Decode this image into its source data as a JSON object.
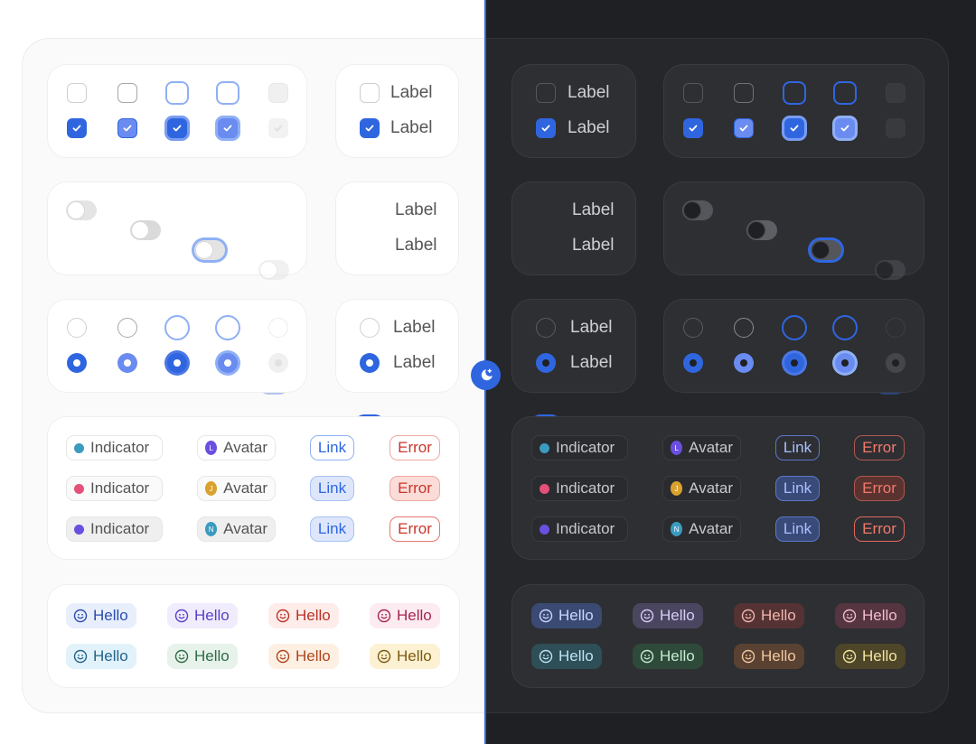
{
  "colors": {
    "accent": "#2f66e0",
    "accent_hover": "#6a8cf0",
    "focus_ring": "#8fb0f5",
    "dark_bg": "#1f2023"
  },
  "theme_toggle": {
    "icon": "moon-icon"
  },
  "checkbox_label_card": {
    "items": [
      {
        "label": "Label",
        "checked": false
      },
      {
        "label": "Label",
        "checked": true
      }
    ]
  },
  "toggle_label_card": {
    "items": [
      {
        "label": "Label",
        "on": false
      },
      {
        "label": "Label",
        "on": true
      }
    ]
  },
  "radio_label_card": {
    "items": [
      {
        "label": "Label",
        "selected": false
      },
      {
        "label": "Label",
        "selected": true
      }
    ]
  },
  "badges": {
    "indicators": [
      {
        "label": "Indicator",
        "dot": "#3a9bbf"
      },
      {
        "label": "Indicator",
        "dot": "#e4507a"
      },
      {
        "label": "Indicator",
        "dot": "#6a4fe0"
      }
    ],
    "avatars": [
      {
        "label": "Avatar",
        "initial": "L",
        "color": "#6a4fe0"
      },
      {
        "label": "Avatar",
        "initial": "J",
        "color": "#d9a22e"
      },
      {
        "label": "Avatar",
        "initial": "N",
        "color": "#3a9bbf"
      }
    ],
    "links": [
      {
        "label": "Link"
      },
      {
        "label": "Link"
      },
      {
        "label": "Link"
      }
    ],
    "errors": [
      {
        "label": "Error"
      },
      {
        "label": "Error"
      },
      {
        "label": "Error"
      }
    ]
  },
  "hello_tags": {
    "icon": "smiley-icon",
    "items": [
      {
        "label": "Hello",
        "color": "blue"
      },
      {
        "label": "Hello",
        "color": "purple"
      },
      {
        "label": "Hello",
        "color": "red"
      },
      {
        "label": "Hello",
        "color": "pink"
      },
      {
        "label": "Hello",
        "color": "cyan"
      },
      {
        "label": "Hello",
        "color": "green"
      },
      {
        "label": "Hello",
        "color": "orange"
      },
      {
        "label": "Hello",
        "color": "yellow"
      }
    ]
  }
}
